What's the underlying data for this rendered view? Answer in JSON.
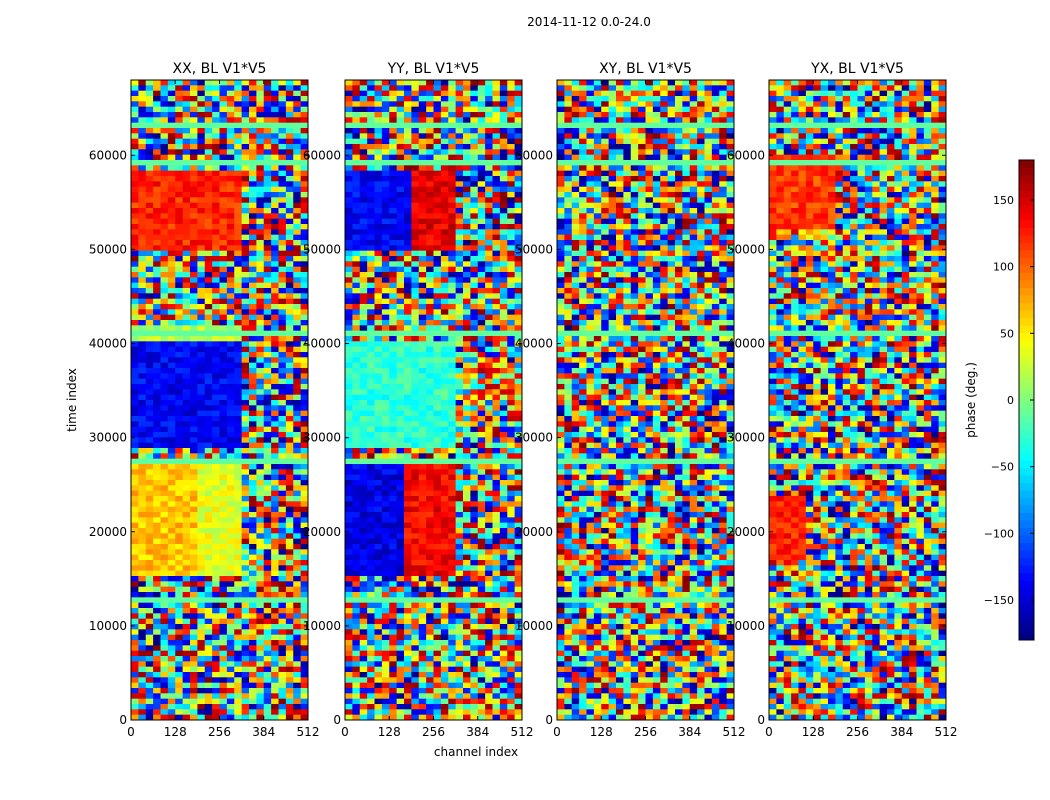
{
  "chart_data": {
    "type": "heatmap",
    "suptitle": "2014-11-12 0.0-24.0",
    "xlabel": "channel index",
    "ylabel": "time index",
    "xlim": [
      0,
      512
    ],
    "ylim": [
      0,
      68000
    ],
    "xticks": [
      0,
      128,
      256,
      384,
      512
    ],
    "yticks": [
      0,
      10000,
      20000,
      30000,
      40000,
      50000,
      60000
    ],
    "colorbar": {
      "label": "phase (deg.)",
      "range": [
        -180,
        180
      ],
      "ticks": [
        -150,
        -100,
        -50,
        0,
        50,
        100,
        150
      ],
      "colormap": "jet"
    },
    "panels": [
      {
        "title": "XX, BL V1*V5",
        "polarization": "XX"
      },
      {
        "title": "YY, BL V1*V5",
        "polarization": "YY"
      },
      {
        "title": "XY, BL V1*V5",
        "polarization": "XY"
      },
      {
        "title": "YX, BL V1*V5",
        "polarization": "YX"
      }
    ]
  }
}
